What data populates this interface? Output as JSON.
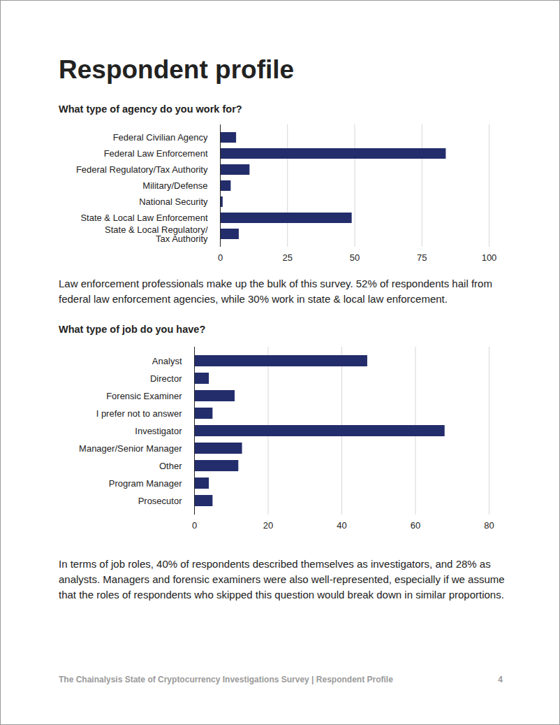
{
  "page": {
    "heading": "Respondent profile",
    "footer": "The Chainalysis State of Cryptocurrency Investigations Survey | Respondent Profile",
    "page_number": 4
  },
  "chart_data": [
    {
      "type": "bar",
      "orientation": "horizontal",
      "title": "What type of agency do you work for?",
      "categories": [
        "Federal Civilian Agency",
        "Federal Law Enforcement",
        "Federal Regulatory/Tax Authority",
        "Military/Defense",
        "National Security",
        "State & Local Law Enforcement",
        "State & Local Regulatory/\nTax Authority"
      ],
      "values": [
        6,
        84,
        11,
        4,
        1,
        49,
        7
      ],
      "color": "#232d6b",
      "xlim": [
        0,
        100
      ],
      "xticks": [
        0,
        25,
        50,
        75,
        100
      ],
      "grid": true,
      "caption": "Law enforcement professionals make up the bulk of this survey. 52% of respondents hail from federal law enforcement agencies, while 30% work in state & local law enforcement."
    },
    {
      "type": "bar",
      "orientation": "horizontal",
      "title": "What type of job do you have?",
      "categories": [
        "Analyst",
        "Director",
        "Forensic Examiner",
        "I prefer not to answer",
        "Investigator",
        "Manager/Senior Manager",
        "Other",
        "Program Manager",
        "Prosecutor"
      ],
      "values": [
        47,
        4,
        11,
        5,
        68,
        13,
        12,
        4,
        5
      ],
      "color": "#232d6b",
      "xlim": [
        0,
        80
      ],
      "xticks": [
        0,
        20,
        40,
        60,
        80
      ],
      "grid": true,
      "caption": "In terms of job roles, 40% of respondents described themselves as investigators, and 28% as analysts. Managers and forensic examiners were also well-represented, especially if we assume that the roles of respondents who skipped this question would break down in similar proportions."
    }
  ]
}
